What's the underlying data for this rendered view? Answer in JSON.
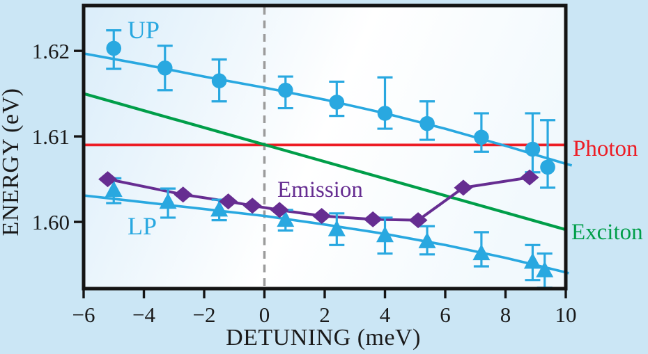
{
  "figure": {
    "outer_bg": "#cbe6f5",
    "frame_color": "#141414",
    "plotbg_left": "#dceefa",
    "plotbg_mid": "#ffffff",
    "plotbg_right": "#f2f9fd"
  },
  "chart_data": {
    "type": "line",
    "title": "",
    "xlabel": "DETUNING (meV)",
    "ylabel": "ENERGY (eV)",
    "xlim": [
      -6,
      10
    ],
    "ylim": [
      1.5922,
      1.6253
    ],
    "grid": false,
    "x_ticks": [
      -6,
      -4,
      -2,
      0,
      2,
      4,
      6,
      8,
      10
    ],
    "x_tick_labels": [
      "−6",
      "−4",
      "−2",
      "0",
      "2",
      "4",
      "6",
      "8",
      "10"
    ],
    "y_ticks": [
      1.6,
      1.61,
      1.62
    ],
    "y_tick_labels": [
      "1.60",
      "1.61",
      "1.62"
    ],
    "vline_x": 0,
    "vline_color": "#9b9b9b",
    "annotations": {
      "up": "UP",
      "lp": "LP",
      "emission": "Emission",
      "photon": "Photon",
      "exciton": "Exciton"
    },
    "colors": {
      "polariton": "#29a8e0",
      "exciton": "#009e49",
      "photon": "#ed1c24",
      "emission": "#662d91"
    },
    "series": [
      {
        "name": "Photon",
        "kind": "line",
        "color": "#ed1c24",
        "width": 3.8,
        "points": [
          [
            -6,
            1.609
          ],
          [
            10,
            1.609
          ]
        ]
      },
      {
        "name": "Exciton",
        "kind": "line",
        "color": "#009e49",
        "width": 4.2,
        "points": [
          [
            -6,
            1.615
          ],
          [
            10,
            1.5991
          ]
        ]
      },
      {
        "name": "UP theory",
        "kind": "line",
        "color": "#29a8e0",
        "width": 3.6,
        "points": [
          [
            -6,
            1.6197
          ],
          [
            -4,
            1.6184
          ],
          [
            -2,
            1.617
          ],
          [
            0,
            1.6157
          ],
          [
            2,
            1.6143
          ],
          [
            4,
            1.6127
          ],
          [
            6,
            1.6109
          ],
          [
            8,
            1.6089
          ],
          [
            10,
            1.6068
          ],
          [
            10.2,
            1.6066
          ]
        ]
      },
      {
        "name": "LP theory",
        "kind": "line",
        "color": "#29a8e0",
        "width": 3.6,
        "points": [
          [
            -6,
            1.6031
          ],
          [
            -4,
            1.6023
          ],
          [
            -2,
            1.6015
          ],
          [
            0,
            1.6007
          ],
          [
            2,
            1.5997
          ],
          [
            4,
            1.5986
          ],
          [
            6,
            1.5973
          ],
          [
            8,
            1.5958
          ],
          [
            10,
            1.5941
          ],
          [
            10.1,
            1.594
          ]
        ]
      },
      {
        "name": "UP data",
        "kind": "scatter",
        "marker": "circle",
        "color": "#29a8e0",
        "points": [
          [
            -5.0,
            1.6203,
            0.0021,
            0.0024
          ],
          [
            -3.3,
            1.618,
            0.0026,
            0.0026
          ],
          [
            -1.5,
            1.6165,
            0.0025,
            0.0024
          ],
          [
            0.7,
            1.6154,
            0.0016,
            0.0021
          ],
          [
            2.4,
            1.614,
            0.0024,
            0.0016
          ],
          [
            4.0,
            1.6127,
            0.0042,
            0.0018
          ],
          [
            5.4,
            1.6115,
            0.0026,
            0.0019
          ],
          [
            7.2,
            1.6099,
            0.0028,
            0.0017
          ],
          [
            8.9,
            1.6085,
            0.0042,
            0.0027
          ],
          [
            9.4,
            1.6064,
            0.0055,
            0.0024
          ]
        ]
      },
      {
        "name": "LP data",
        "kind": "scatter",
        "marker": "triangle",
        "color": "#29a8e0",
        "points": [
          [
            -5.0,
            1.6037,
            0.0014,
            0.0015
          ],
          [
            -3.2,
            1.6023,
            0.0016,
            0.0018
          ],
          [
            -1.5,
            1.6014,
            0.0012,
            0.0012
          ],
          [
            0.7,
            1.6002,
            0.0012,
            0.0012
          ],
          [
            2.4,
            1.5991,
            0.0019,
            0.0018
          ],
          [
            4.0,
            1.5984,
            0.0021,
            0.0021
          ],
          [
            5.4,
            1.5977,
            0.0018,
            0.0015
          ],
          [
            7.2,
            1.5963,
            0.0025,
            0.0015
          ],
          [
            8.9,
            1.5953,
            0.002,
            0.0021
          ],
          [
            9.3,
            1.5943,
            0.002,
            0.002
          ]
        ]
      },
      {
        "name": "Emission",
        "kind": "line+scatter",
        "marker": "diamond",
        "color": "#662d91",
        "width": 4,
        "points": [
          [
            -5.2,
            1.605
          ],
          [
            -2.7,
            1.6032
          ],
          [
            -1.2,
            1.6024
          ],
          [
            -0.4,
            1.6019
          ],
          [
            0.5,
            1.6014
          ],
          [
            1.9,
            1.6007
          ],
          [
            3.6,
            1.6003
          ],
          [
            5.1,
            1.6002
          ],
          [
            6.6,
            1.604
          ],
          [
            8.8,
            1.6052
          ]
        ]
      }
    ]
  }
}
